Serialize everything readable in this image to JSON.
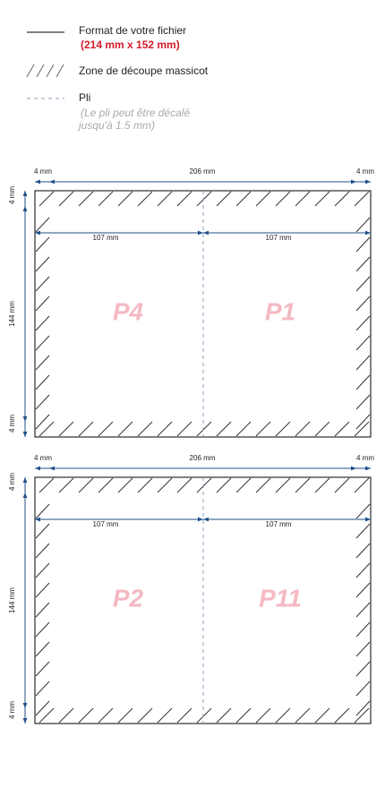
{
  "legend": {
    "format": {
      "label": "Format de votre fichier",
      "note": "(214 mm x 152 mm)"
    },
    "cut": {
      "label": "Zone de découpe massicot"
    },
    "fold": {
      "label": "Pli",
      "note": [
        "(Le pli peut être décalé",
        "jusqu'à 1.5 mm)"
      ]
    }
  },
  "sheets": [
    {
      "dims": {
        "left": "4 mm",
        "width": "206 mm",
        "right": "4 mm",
        "half_left": "107 mm",
        "half_right": "107 mm",
        "top": "4 mm",
        "height": "144 mm",
        "bottom": "4 mm"
      },
      "pages": [
        "P4",
        "P1"
      ]
    },
    {
      "dims": {
        "left": "4 mm",
        "width": "206 mm",
        "right": "4 mm",
        "half_left": "107 mm",
        "half_right": "107 mm",
        "top": "4 mm",
        "height": "144 mm",
        "bottom": "4 mm"
      },
      "pages": [
        "P2",
        "P11"
      ]
    }
  ]
}
